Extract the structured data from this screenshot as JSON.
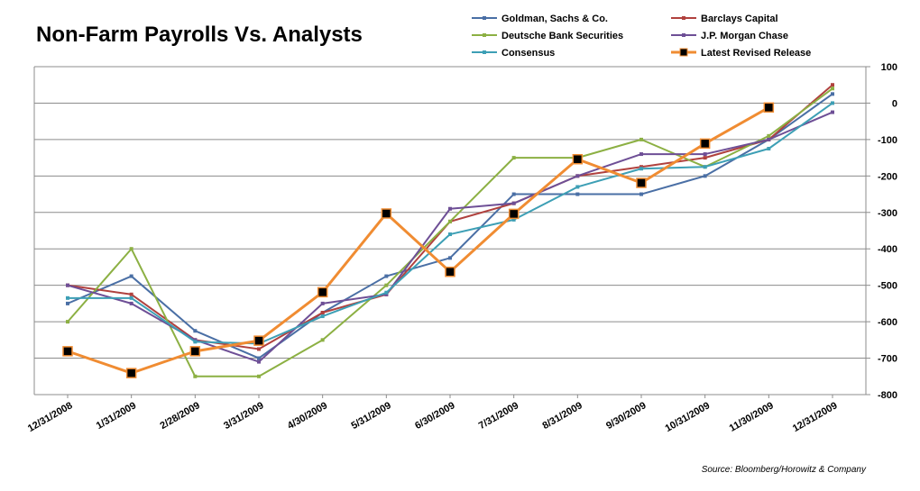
{
  "chart_data": {
    "type": "line",
    "title": "Non-Farm Payrolls Vs. Analysts",
    "source": "Source: Bloomberg/Horowitz & Company",
    "x": [
      "12/31/2008",
      "1/31/2009",
      "2/28/2009",
      "3/31/2009",
      "4/30/2009",
      "5/31/2009",
      "6/30/2009",
      "7/31/2009",
      "8/31/2009",
      "9/30/2009",
      "10/31/2009",
      "11/30/2009",
      "12/31/2009"
    ],
    "ylim": [
      -800,
      100
    ],
    "yticks": [
      100,
      0,
      -100,
      -200,
      -300,
      -400,
      -500,
      -600,
      -700,
      -800
    ],
    "grid": true,
    "y_axis_side": "right",
    "legend_position": "top-right",
    "series": [
      {
        "name": "Goldman, Sachs & Co.",
        "color": "#4a6fa5",
        "marker": "small-square",
        "values": [
          -550,
          -475,
          -625,
          -700,
          -575,
          -475,
          -425,
          -250,
          -250,
          -250,
          -200,
          -100,
          25
        ]
      },
      {
        "name": "Barclays Capital",
        "color": "#b0413e",
        "marker": "small-square",
        "values": [
          -500,
          -525,
          -650,
          -675,
          -575,
          -525,
          -325,
          -275,
          -200,
          -175,
          -150,
          -100,
          50
        ]
      },
      {
        "name": "Deutsche Bank Securities",
        "color": "#8cb043",
        "marker": "small-square",
        "values": [
          -600,
          -400,
          -750,
          -750,
          -650,
          -500,
          -325,
          -150,
          -150,
          -100,
          -175,
          -90,
          40
        ]
      },
      {
        "name": "J.P. Morgan Chase",
        "color": "#6e4f96",
        "marker": "small-square",
        "values": [
          -500,
          -550,
          -650,
          -710,
          -550,
          -525,
          -290,
          -275,
          -200,
          -140,
          -140,
          -100,
          -25
        ]
      },
      {
        "name": "Consensus",
        "color": "#3d9fb5",
        "marker": "small-square",
        "values": [
          -535,
          -535,
          -655,
          -660,
          -585,
          -520,
          -360,
          -320,
          -230,
          -180,
          -175,
          -125,
          0
        ]
      },
      {
        "name": "Latest Revised Release",
        "color": "#f08c32",
        "marker": "black-square",
        "values": [
          -681,
          -741,
          -681,
          -652,
          -519,
          -303,
          -463,
          -304,
          -154,
          -219,
          -111,
          -12,
          null
        ]
      }
    ]
  }
}
